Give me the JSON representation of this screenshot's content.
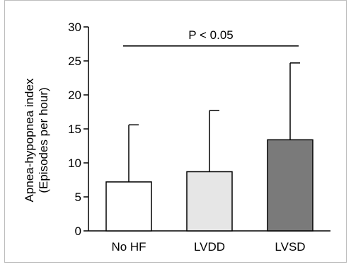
{
  "chart_data": {
    "type": "bar",
    "title": "",
    "xlabel": "",
    "ylabel": "Apnea-hypopnea index",
    "ylabel_sub": "(Episodes per hour)",
    "ylim": [
      0,
      30
    ],
    "yticks": [
      0,
      5,
      10,
      15,
      20,
      25,
      30
    ],
    "grid": false,
    "categories": [
      "No HF",
      "LVDD",
      "LVSD"
    ],
    "values": [
      7.2,
      8.7,
      13.4
    ],
    "error_upper": [
      8.4,
      9.0,
      11.3
    ],
    "bar_colors": [
      "#ffffff",
      "#e6e6e6",
      "#7a7a7a"
    ],
    "annotation": {
      "text": "P < 0.05",
      "from": "No HF",
      "to": "LVSD",
      "y": 27.2
    }
  }
}
